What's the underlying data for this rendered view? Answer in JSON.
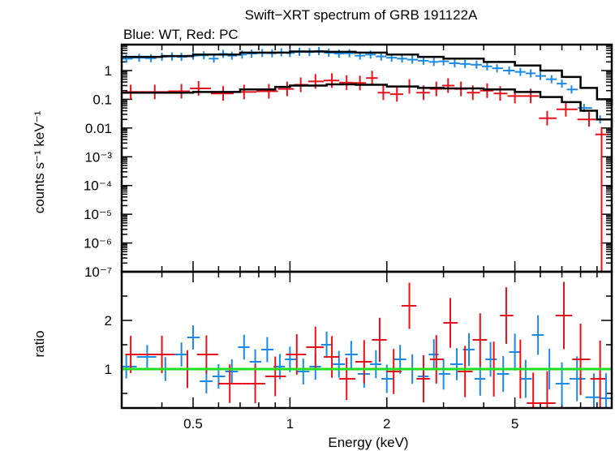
{
  "chart_data": {
    "type": "scatter",
    "title": "Swift−XRT spectrum of GRB 191122A",
    "subtitle": "Blue: WT, Red: PC",
    "xlabel": "Energy (keV)",
    "x_scale": "log",
    "xlim": [
      0.3,
      10
    ],
    "x_ticks": [
      "0.5",
      "1",
      "2",
      "5"
    ],
    "colors": {
      "wt": "#1a8ae6",
      "pc": "#e8101a",
      "model": "#000000",
      "unity": "#22dd22"
    },
    "panels": [
      {
        "name": "spectrum",
        "ylabel": "counts s⁻¹ keV⁻¹",
        "y_scale": "log",
        "ylim": [
          1e-07,
          8
        ],
        "y_ticks": [
          "1",
          "0.1",
          "0.01",
          "10⁻³",
          "10⁻⁴",
          "10⁻⁵",
          "10⁻⁶",
          "10⁻⁷"
        ],
        "series": [
          {
            "key": "wt",
            "x": [
              0.31,
              0.34,
              0.37,
              0.4,
              0.43,
              0.46,
              0.5,
              0.54,
              0.58,
              0.62,
              0.66,
              0.71,
              0.76,
              0.82,
              0.88,
              0.94,
              1.0,
              1.07,
              1.15,
              1.23,
              1.32,
              1.42,
              1.53,
              1.65,
              1.78,
              1.92,
              2.07,
              2.23,
              2.4,
              2.6,
              2.8,
              3.0,
              3.25,
              3.5,
              3.8,
              4.1,
              4.4,
              4.8,
              5.2,
              5.6,
              6.0,
              6.5,
              7.0,
              7.5,
              8.2,
              9.2
            ],
            "y": [
              2.6,
              2.8,
              2.7,
              3.0,
              3.1,
              3.0,
              3.3,
              3.4,
              2.6,
              3.8,
              3.3,
              3.6,
              3.9,
              4.1,
              4.0,
              4.3,
              4.1,
              4.5,
              4.4,
              4.8,
              4.2,
              3.9,
              4.0,
              3.3,
              3.6,
              3.1,
              2.8,
              2.6,
              2.4,
              2.2,
              2.0,
              2.1,
              1.8,
              1.7,
              1.6,
              1.4,
              1.2,
              1.0,
              0.9,
              0.8,
              0.65,
              0.5,
              0.35,
              0.22,
              0.05,
              0.02
            ]
          },
          {
            "key": "pc",
            "x": [
              0.32,
              0.38,
              0.46,
              0.52,
              0.62,
              0.72,
              0.86,
              0.98,
              1.08,
              1.2,
              1.35,
              1.5,
              1.65,
              1.8,
              1.95,
              2.15,
              2.35,
              2.6,
              2.85,
              3.1,
              3.4,
              3.7,
              4.1,
              4.5,
              5.0,
              5.6,
              6.3,
              7.2,
              8.5,
              9.3
            ],
            "y": [
              0.18,
              0.18,
              0.19,
              0.24,
              0.16,
              0.18,
              0.19,
              0.23,
              0.32,
              0.42,
              0.45,
              0.38,
              0.37,
              0.55,
              0.17,
              0.15,
              0.28,
              0.17,
              0.23,
              0.3,
              0.23,
              0.17,
              0.2,
              0.16,
              0.13,
              0.13,
              0.022,
              0.045,
              0.02,
              0.006
            ]
          },
          {
            "key": "model",
            "x": [
              0.3,
              0.4,
              0.5,
              0.7,
              1.0,
              1.3,
              1.6,
              2.0,
              2.5,
              3.0,
              4.0,
              5.0,
              6.0,
              7.0,
              8.0,
              9.0,
              10.0
            ],
            "y": [
              3.0,
              3.2,
              3.6,
              4.2,
              4.6,
              4.5,
              4.2,
              3.6,
              3.0,
              2.6,
              2.0,
              1.5,
              1.0,
              0.6,
              0.25,
              0.1,
              0.06
            ]
          },
          {
            "key": "model",
            "x": [
              0.3,
              0.5,
              0.7,
              0.9,
              1.0,
              1.3,
              1.6,
              2.0,
              2.5,
              3.0,
              4.0,
              5.0,
              6.0,
              7.0,
              8.0,
              9.0,
              10.0
            ],
            "y": [
              0.17,
              0.18,
              0.22,
              0.27,
              0.3,
              0.33,
              0.32,
              0.28,
              0.25,
              0.24,
              0.22,
              0.18,
              0.12,
              0.08,
              0.04,
              0.02,
              0.01
            ]
          }
        ]
      },
      {
        "name": "ratio",
        "ylabel": "ratio",
        "y_scale": "linear",
        "ylim": [
          0.2,
          3.0
        ],
        "y_ticks": [
          "1",
          "2"
        ],
        "unity_line": 1,
        "series": [
          {
            "key": "wt",
            "x": [
              0.31,
              0.36,
              0.41,
              0.46,
              0.5,
              0.55,
              0.6,
              0.66,
              0.72,
              0.78,
              0.85,
              0.93,
              1.0,
              1.1,
              1.2,
              1.3,
              1.42,
              1.55,
              1.7,
              1.85,
              2.0,
              2.2,
              2.4,
              2.6,
              2.8,
              3.0,
              3.3,
              3.6,
              3.9,
              4.2,
              4.6,
              5.0,
              5.4,
              5.9,
              6.4,
              7.0,
              7.8,
              8.8,
              9.6
            ],
            "y": [
              1.05,
              1.25,
              1.0,
              1.3,
              1.65,
              0.75,
              0.85,
              0.95,
              1.45,
              1.15,
              1.4,
              1.05,
              1.2,
              0.95,
              1.05,
              1.5,
              1.1,
              1.3,
              0.9,
              1.1,
              0.8,
              1.2,
              1.0,
              0.85,
              1.3,
              0.9,
              1.1,
              1.4,
              0.8,
              1.2,
              0.9,
              1.35,
              0.8,
              1.7,
              1.0,
              0.7,
              0.8,
              0.42,
              0.4
            ]
          },
          {
            "key": "pc",
            "x": [
              0.32,
              0.4,
              0.48,
              0.55,
              0.65,
              0.78,
              0.9,
              1.05,
              1.2,
              1.35,
              1.5,
              1.7,
              1.9,
              2.1,
              2.35,
              2.6,
              2.85,
              3.15,
              3.5,
              3.9,
              4.3,
              4.7,
              5.2,
              5.7,
              6.3,
              7.1,
              8.0,
              9.2
            ],
            "y": [
              1.3,
              1.3,
              1.0,
              1.3,
              0.7,
              0.7,
              0.85,
              1.3,
              1.45,
              1.25,
              0.8,
              1.15,
              1.6,
              0.95,
              2.3,
              0.8,
              1.2,
              1.95,
              0.95,
              1.6,
              1.0,
              2.1,
              1.0,
              0.3,
              0.3,
              2.1,
              1.2,
              0.8
            ]
          }
        ]
      }
    ]
  }
}
